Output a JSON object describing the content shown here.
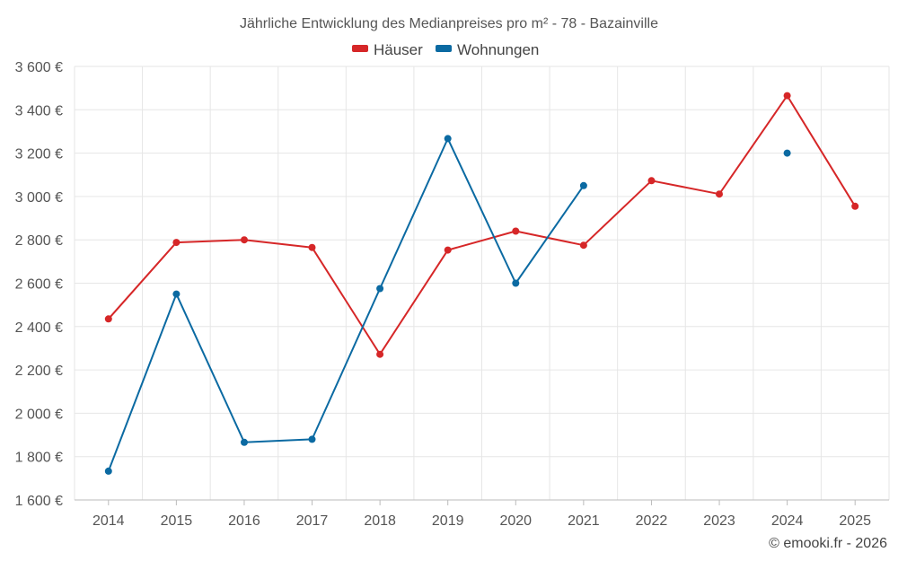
{
  "chart_data": {
    "type": "line",
    "title": "Jährliche Entwicklung des Medianpreises pro m² - 78 - Bazainville",
    "categories": [
      "2014",
      "2015",
      "2016",
      "2017",
      "2018",
      "2019",
      "2020",
      "2021",
      "2022",
      "2023",
      "2024",
      "2025"
    ],
    "y_tick_labels": [
      "1 600 €",
      "1 800 €",
      "2 000 €",
      "2 200 €",
      "2 400 €",
      "2 600 €",
      "2 800 €",
      "3 000 €",
      "3 200 €",
      "3 400 €",
      "3 600 €"
    ],
    "y_ticks": [
      1600,
      1800,
      2000,
      2200,
      2400,
      2600,
      2800,
      3000,
      3200,
      3400,
      3600
    ],
    "ylim": [
      1600,
      3600
    ],
    "grid": true,
    "legend_position": "top-center",
    "series": [
      {
        "name": "Häuser",
        "color": "#d62728",
        "values": [
          2435,
          2788,
          2800,
          2765,
          2272,
          2753,
          2840,
          2775,
          3073,
          3011,
          3465,
          2955
        ]
      },
      {
        "name": "Wohnungen",
        "color": "#0b6aa2",
        "values": [
          1733,
          2550,
          1866,
          1880,
          2575,
          3267,
          2600,
          3050,
          null,
          null,
          3200,
          null
        ]
      }
    ],
    "credit": "© emooki.fr - 2026"
  }
}
